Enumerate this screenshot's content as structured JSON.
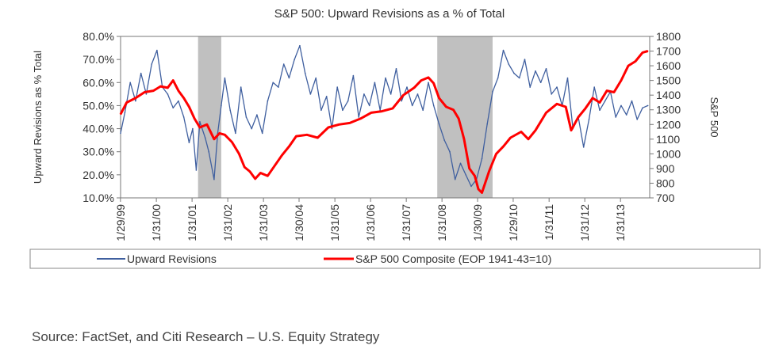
{
  "chart_data": {
    "type": "line",
    "title": "S&P 500: Upward Revisions as a % of Total",
    "ylabel_left": "Upward Revisions as % Total",
    "ylabel_right": "S&P 500",
    "y_left_ticks": [
      "80.0%",
      "70.0%",
      "60.0%",
      "50.0%",
      "40.0%",
      "30.0%",
      "20.0%",
      "10.0%"
    ],
    "y_right_ticks": [
      "1800",
      "1700",
      "1600",
      "1500",
      "1400",
      "1300",
      "1200",
      "1100",
      "1000",
      "900",
      "800",
      "700"
    ],
    "x_tick_labels": [
      "1/29/99",
      "1/31/00",
      "1/31/01",
      "1/31/02",
      "1/31/03",
      "1/30/04",
      "1/31/05",
      "1/31/06",
      "1/31/07",
      "1/31/08",
      "1/30/09",
      "1/29/10",
      "1/31/11",
      "1/31/12",
      "1/31/13"
    ],
    "ylim_left": [
      10,
      80
    ],
    "ylim_right": [
      700,
      1800
    ],
    "xlim": [
      1999.08,
      2013.9
    ],
    "recessions": [
      [
        2001.25,
        2001.9
      ],
      [
        2007.95,
        2009.5
      ]
    ],
    "series": [
      {
        "name": "Upward Revisions",
        "color": "#3f5f9f",
        "axis": "left",
        "x": [
          1999.08,
          1999.2,
          1999.35,
          1999.5,
          1999.65,
          1999.8,
          1999.95,
          2000.1,
          2000.25,
          2000.4,
          2000.55,
          2000.7,
          2000.85,
          2001.0,
          2001.1,
          2001.2,
          2001.3,
          2001.45,
          2001.55,
          2001.7,
          2001.8,
          2001.9,
          2002.0,
          2002.15,
          2002.3,
          2002.45,
          2002.6,
          2002.75,
          2002.9,
          2003.05,
          2003.2,
          2003.35,
          2003.5,
          2003.65,
          2003.8,
          2003.95,
          2004.1,
          2004.25,
          2004.4,
          2004.55,
          2004.7,
          2004.85,
          2005.0,
          2005.15,
          2005.3,
          2005.45,
          2005.6,
          2005.75,
          2005.9,
          2006.05,
          2006.2,
          2006.35,
          2006.5,
          2006.65,
          2006.8,
          2006.95,
          2007.1,
          2007.25,
          2007.4,
          2007.55,
          2007.7,
          2007.85,
          2008.0,
          2008.15,
          2008.3,
          2008.45,
          2008.6,
          2008.75,
          2008.9,
          2009.05,
          2009.2,
          2009.35,
          2009.5,
          2009.65,
          2009.8,
          2009.95,
          2010.1,
          2010.25,
          2010.4,
          2010.55,
          2010.7,
          2010.85,
          2011.0,
          2011.15,
          2011.3,
          2011.45,
          2011.6,
          2011.75,
          2011.9,
          2012.05,
          2012.2,
          2012.35,
          2012.5,
          2012.65,
          2012.8,
          2012.95,
          2013.1,
          2013.25,
          2013.4,
          2013.55,
          2013.7,
          2013.85
        ],
        "y": [
          38,
          47,
          60,
          52,
          64,
          55,
          68,
          74,
          58,
          55,
          49,
          52,
          45,
          34,
          40,
          22,
          43,
          36,
          30,
          18,
          38,
          50,
          62,
          48,
          38,
          58,
          45,
          40,
          46,
          38,
          52,
          60,
          58,
          68,
          62,
          70,
          76,
          64,
          55,
          62,
          48,
          54,
          40,
          58,
          48,
          52,
          63,
          45,
          55,
          50,
          60,
          48,
          62,
          55,
          66,
          52,
          58,
          50,
          55,
          48,
          60,
          50,
          42,
          35,
          30,
          18,
          25,
          20,
          15,
          18,
          27,
          42,
          56,
          62,
          74,
          68,
          64,
          62,
          70,
          58,
          65,
          60,
          66,
          55,
          58,
          50,
          62,
          40,
          45,
          32,
          44,
          58,
          48,
          52,
          56,
          45,
          50,
          46,
          52,
          44,
          49,
          50
        ]
      },
      {
        "name": "S&P 500 Composite (EOP 1941-43=10)",
        "color": "#ff0000",
        "axis": "right",
        "x": [
          1999.08,
          1999.25,
          1999.5,
          1999.75,
          2000.0,
          2000.2,
          2000.4,
          2000.55,
          2000.7,
          2000.85,
          2001.0,
          2001.15,
          2001.3,
          2001.5,
          2001.7,
          2001.85,
          2002.0,
          2002.2,
          2002.4,
          2002.55,
          2002.7,
          2002.85,
          2003.0,
          2003.2,
          2003.4,
          2003.6,
          2003.8,
          2004.0,
          2004.3,
          2004.6,
          2004.9,
          2005.2,
          2005.5,
          2005.8,
          2006.1,
          2006.4,
          2006.7,
          2007.0,
          2007.3,
          2007.5,
          2007.7,
          2007.85,
          2008.0,
          2008.2,
          2008.4,
          2008.55,
          2008.7,
          2008.85,
          2009.0,
          2009.1,
          2009.2,
          2009.4,
          2009.6,
          2009.8,
          2010.0,
          2010.3,
          2010.5,
          2010.7,
          2011.0,
          2011.3,
          2011.55,
          2011.7,
          2011.9,
          2012.1,
          2012.3,
          2012.5,
          2012.7,
          2012.9,
          2013.1,
          2013.3,
          2013.5,
          2013.7,
          2013.85
        ],
        "y": [
          1270,
          1350,
          1380,
          1420,
          1430,
          1460,
          1450,
          1500,
          1430,
          1380,
          1320,
          1240,
          1180,
          1200,
          1100,
          1140,
          1130,
          1080,
          1000,
          910,
          880,
          830,
          870,
          850,
          920,
          990,
          1050,
          1120,
          1130,
          1110,
          1180,
          1200,
          1210,
          1240,
          1280,
          1290,
          1310,
          1400,
          1450,
          1500,
          1520,
          1480,
          1380,
          1320,
          1300,
          1240,
          1100,
          900,
          850,
          760,
          735,
          880,
          1000,
          1050,
          1110,
          1150,
          1100,
          1160,
          1280,
          1340,
          1320,
          1160,
          1250,
          1310,
          1380,
          1350,
          1430,
          1420,
          1500,
          1600,
          1630,
          1690,
          1700
        ]
      }
    ],
    "legend_position": "bottom",
    "grid": false
  },
  "source": "Source: FactSet, and Citi Research – U.S. Equity Strategy"
}
